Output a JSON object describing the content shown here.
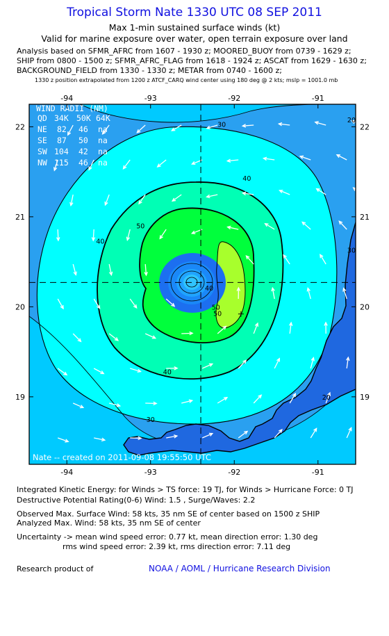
{
  "header": {
    "title": "Tropical Storm Nate 1330 UTC 08 SEP 2011",
    "subtitle": "Max 1-min sustained surface winds (kt)",
    "validity": "Valid for marine exposure over water, open terrain exposure over land",
    "analysis_lines": [
      "Analysis based on SFMR_AFRC from 1607 - 1930 z; MOORED_BUOY from 0739 - 1629 z;",
      "SHIP from 0800 - 1500 z; SFMR_AFRC_FLAG from 1618 - 1924 z; ASCAT from 1629 - 1630 z;",
      "BACKGROUND_FIELD from 1330 - 1330 z; METAR from 0740 - 1600 z;"
    ],
    "position_note": "1330 z position extrapolated from 1200 z ATCF_CARQ wind center using 180 deg @ 2 kts; mslp = 1001.0 mb"
  },
  "wind_radii": {
    "title": "WIND RADII (NM)",
    "header": [
      "QD",
      "34K",
      "50K",
      "64K"
    ],
    "rows": [
      [
        "NE",
        "82",
        "46",
        "na"
      ],
      [
        "SE",
        "87",
        "50",
        "na"
      ],
      [
        "SW",
        "104",
        "42",
        "na"
      ],
      [
        "NW",
        "115",
        "46",
        "na"
      ]
    ]
  },
  "credit": "Nate -- created on 2011-09-08 19:55:50 UTC",
  "chart_data": {
    "type": "contour",
    "x_ticks": [
      "-94",
      "-93",
      "-92",
      "-91"
    ],
    "y_ticks": [
      "22",
      "21",
      "20",
      "19"
    ],
    "xlim": [
      -94.45,
      -90.55
    ],
    "ylim": [
      18.25,
      22.25
    ],
    "center": {
      "lon": -92.4,
      "lat": 20.27
    },
    "max_wind_location": {
      "lon": -91.92,
      "lat": 19.92
    },
    "contour_labels": [
      {
        "text": "30",
        "lon": -92.15,
        "lat": 22.0
      },
      {
        "text": "30",
        "lon": -93.0,
        "lat": 18.72
      },
      {
        "text": "30",
        "lon": -90.6,
        "lat": 20.6
      },
      {
        "text": "40",
        "lon": -91.85,
        "lat": 21.4
      },
      {
        "text": "40",
        "lon": -93.6,
        "lat": 20.7
      },
      {
        "text": "40",
        "lon": -92.8,
        "lat": 19.25
      },
      {
        "text": "50",
        "lon": -93.12,
        "lat": 20.87
      },
      {
        "text": "50",
        "lon": -92.2,
        "lat": 19.9
      },
      {
        "text": "50",
        "lon": -92.22,
        "lat": 19.97
      },
      {
        "text": "40",
        "lon": -92.3,
        "lat": 20.18
      },
      {
        "text": "20",
        "lon": -90.9,
        "lat": 18.97
      },
      {
        "text": "20",
        "lon": -90.6,
        "lat": 22.05
      }
    ],
    "colors": {
      "lt20": "#2aa0f0",
      "20-30": "#00caff",
      "30-40": "#00ffff",
      "40-50": "#00ffb5",
      "50-60": "#00ff3c",
      "60+": "#a8ff2c",
      "core": [
        "#1c6ff0",
        "#1a88f8",
        "#20a4ff",
        "#30c4ff"
      ],
      "land": "#1f68e0"
    }
  },
  "footer": {
    "ike": "Integrated Kinetic Energy:  for Winds > TS force: 19 TJ,  for Winds > Hurricane Force: 0 TJ",
    "dpr": "Destructive Potential Rating(0-6)   Wind: 1.5 , Surge/Waves: 2.2",
    "observed": "Observed Max. Surface Wind: 58 kts, 35 nm SE of center based on 1500 z SHIP",
    "analyzed": "Analyzed Max. Wind: 58 kts, 35 nm SE of center",
    "uncertainty1": "Uncertainty -> mean wind speed error: 0.77 kt,   mean direction error: 1.30 deg",
    "uncertainty2": "rms wind speed error: 2.39 kt,   rms direction error: 7.11 deg",
    "research": "Research product of",
    "org": "NOAA / AOML / Hurricane Research Division"
  }
}
